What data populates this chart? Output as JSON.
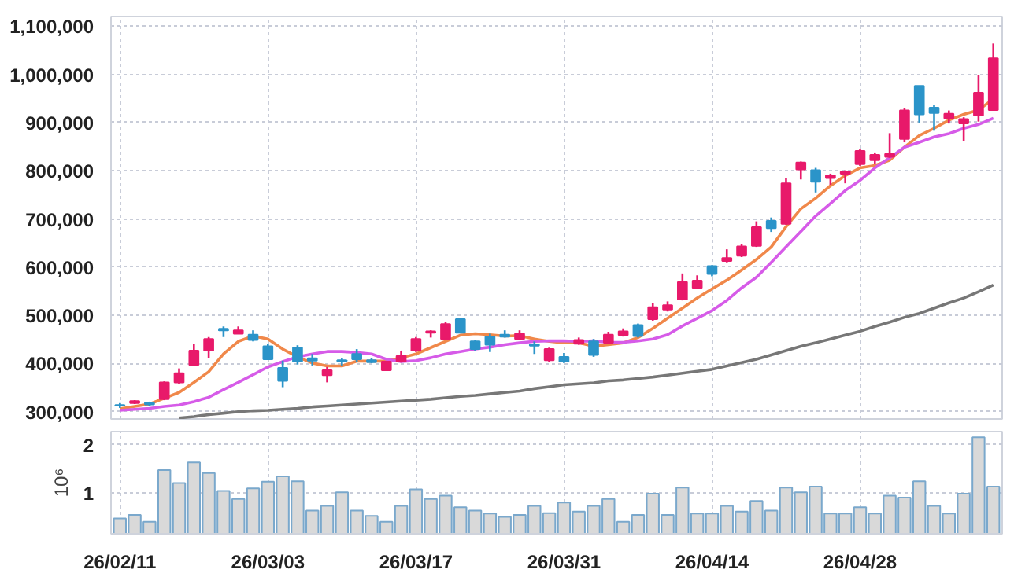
{
  "chart_data": [
    {
      "type": "candlestick",
      "categories": [
        null,
        null,
        null,
        null,
        null,
        null,
        null,
        null,
        null,
        null,
        null,
        null,
        null,
        null,
        null,
        null,
        null,
        null,
        null,
        null,
        null,
        null,
        null,
        null,
        null,
        null,
        null,
        null,
        null,
        null,
        null,
        null,
        null,
        null,
        null,
        null,
        null,
        null,
        null,
        null,
        null,
        null,
        null,
        null,
        null,
        null,
        null,
        null,
        null,
        null,
        null,
        null,
        null,
        null,
        null,
        null,
        null,
        null,
        null,
        null
      ],
      "ohlc": [
        [
          314000,
          318000,
          308000,
          313000
        ],
        [
          318000,
          324000,
          316000,
          322000
        ],
        [
          319000,
          321000,
          311000,
          315000
        ],
        [
          326000,
          363000,
          324000,
          361000
        ],
        [
          361000,
          390000,
          358000,
          380000
        ],
        [
          397000,
          441000,
          395000,
          427000
        ],
        [
          427000,
          455000,
          412000,
          451000
        ],
        [
          472000,
          477000,
          455000,
          469000
        ],
        [
          462000,
          477000,
          462000,
          469000
        ],
        [
          460000,
          469000,
          446000,
          449000
        ],
        [
          436000,
          441000,
          409000,
          409000
        ],
        [
          391000,
          406000,
          351000,
          364000
        ],
        [
          433000,
          438000,
          398000,
          404000
        ],
        [
          411000,
          420000,
          396000,
          406000
        ],
        [
          376000,
          393000,
          361000,
          386000
        ],
        [
          407000,
          412000,
          396000,
          404000
        ],
        [
          420000,
          430000,
          404000,
          409000
        ],
        [
          407000,
          412000,
          401000,
          403000
        ],
        [
          386000,
          405000,
          385000,
          404000
        ],
        [
          404000,
          427000,
          402000,
          416000
        ],
        [
          427000,
          455000,
          424000,
          451000
        ],
        [
          464000,
          469000,
          454000,
          467000
        ],
        [
          451000,
          487000,
          449000,
          482000
        ],
        [
          492000,
          494000,
          464000,
          464000
        ],
        [
          446000,
          449000,
          427000,
          430000
        ],
        [
          456000,
          462000,
          424000,
          439000
        ],
        [
          460000,
          469000,
          454000,
          456000
        ],
        [
          451000,
          469000,
          449000,
          462000
        ],
        [
          440000,
          446000,
          420000,
          437000
        ],
        [
          407000,
          433000,
          404000,
          430000
        ],
        [
          414000,
          422000,
          401000,
          404000
        ],
        [
          441000,
          454000,
          439000,
          449000
        ],
        [
          446000,
          451000,
          414000,
          418000
        ],
        [
          443000,
          466000,
          441000,
          460000
        ],
        [
          459000,
          473000,
          456000,
          467000
        ],
        [
          480000,
          483000,
          454000,
          457000
        ],
        [
          492000,
          525000,
          489000,
          517000
        ],
        [
          512000,
          529000,
          508000,
          521000
        ],
        [
          533000,
          587000,
          531000,
          569000
        ],
        [
          557000,
          583000,
          557000,
          572000
        ],
        [
          602000,
          604000,
          581000,
          586000
        ],
        [
          613000,
          637000,
          610000,
          619000
        ],
        [
          624000,
          648000,
          621000,
          643000
        ],
        [
          644000,
          695000,
          642000,
          683000
        ],
        [
          696000,
          703000,
          673000,
          681000
        ],
        [
          690000,
          785000,
          688000,
          774000
        ],
        [
          803000,
          819000,
          782000,
          817000
        ],
        [
          801000,
          806000,
          755000,
          777000
        ],
        [
          785000,
          794000,
          771000,
          790000
        ],
        [
          794000,
          801000,
          774000,
          798000
        ],
        [
          814000,
          845000,
          810000,
          841000
        ],
        [
          822000,
          838000,
          814000,
          833000
        ],
        [
          829000,
          878000,
          827000,
          835000
        ],
        [
          866000,
          930000,
          859000,
          925000
        ],
        [
          976000,
          976000,
          900000,
          917000
        ],
        [
          931000,
          936000,
          883000,
          920000
        ],
        [
          909000,
          925000,
          898000,
          918000
        ],
        [
          898000,
          911000,
          861000,
          907000
        ],
        [
          915000,
          999000,
          902000,
          962000
        ],
        [
          926000,
          1064000,
          925000,
          1033000
        ]
      ],
      "colors": [
        "#2b94c9",
        "#e8196a",
        "#2b94c9",
        "#e8196a",
        "#e8196a",
        "#e8196a",
        "#e8196a",
        "#2b94c9",
        "#e8196a",
        "#2b94c9",
        "#2b94c9",
        "#2b94c9",
        "#2b94c9",
        "#2b94c9",
        "#e8196a",
        "#2b94c9",
        "#2b94c9",
        "#2b94c9",
        "#e8196a",
        "#e8196a",
        "#e8196a",
        "#e8196a",
        "#e8196a",
        "#2b94c9",
        "#2b94c9",
        "#2b94c9",
        "#2b94c9",
        "#e8196a",
        "#2b94c9",
        "#e8196a",
        "#2b94c9",
        "#e8196a",
        "#2b94c9",
        "#e8196a",
        "#e8196a",
        "#2b94c9",
        "#e8196a",
        "#e8196a",
        "#e8196a",
        "#e8196a",
        "#2b94c9",
        "#e8196a",
        "#e8196a",
        "#e8196a",
        "#2b94c9",
        "#e8196a",
        "#e8196a",
        "#2b94c9",
        "#e8196a",
        "#e8196a",
        "#e8196a",
        "#e8196a",
        "#e8196a",
        "#e8196a",
        "#2b94c9",
        "#2b94c9",
        "#e8196a",
        "#e8196a",
        "#e8196a",
        "#e8196a"
      ],
      "series": [
        {
          "type": "line",
          "color": "#f0884a",
          "values": [
            306000,
            311000,
            316000,
            328000,
            340000,
            361000,
            383000,
            420000,
            446000,
            457000,
            451000,
            430000,
            414000,
            401000,
            395000,
            395000,
            405000,
            405000,
            405000,
            412000,
            420000,
            433000,
            446000,
            459000,
            462000,
            460000,
            457000,
            458000,
            451000,
            446000,
            443000,
            443000,
            436000,
            439000,
            443000,
            454000,
            473000,
            494000,
            515000,
            536000,
            555000,
            573000,
            594000,
            616000,
            642000,
            684000,
            721000,
            743000,
            769000,
            790000,
            806000,
            811000,
            822000,
            849000,
            873000,
            888000,
            905000,
            917000,
            926000,
            949000
          ]
        },
        {
          "type": "line",
          "color": "#d65be8",
          "values": [
            303000,
            305000,
            307000,
            311000,
            314000,
            321000,
            330000,
            346000,
            361000,
            377000,
            393000,
            404000,
            414000,
            420000,
            425000,
            425000,
            423000,
            420000,
            409000,
            404000,
            406000,
            412000,
            420000,
            425000,
            430000,
            434000,
            439000,
            443000,
            446000,
            447000,
            447000,
            446000,
            447000,
            444000,
            444000,
            447000,
            451000,
            460000,
            478000,
            494000,
            510000,
            531000,
            557000,
            579000,
            610000,
            642000,
            674000,
            706000,
            732000,
            759000,
            780000,
            806000,
            827000,
            849000,
            859000,
            870000,
            877000,
            888000,
            896000,
            909000
          ]
        },
        {
          "type": "line",
          "color": "#777777",
          "values": [
            null,
            null,
            null,
            null,
            287000,
            290000,
            294000,
            297000,
            300000,
            302000,
            303000,
            305000,
            307000,
            310000,
            312000,
            314000,
            316000,
            318000,
            320000,
            322000,
            324000,
            326000,
            329000,
            332000,
            334000,
            337000,
            340000,
            343000,
            348000,
            352000,
            356000,
            358000,
            360000,
            364000,
            366000,
            369000,
            372000,
            376000,
            380000,
            384000,
            388000,
            395000,
            402000,
            409000,
            418000,
            427000,
            436000,
            443000,
            451000,
            459000,
            467000,
            477000,
            486000,
            496000,
            504000,
            515000,
            526000,
            536000,
            549000,
            563000
          ]
        }
      ],
      "ylim": [
        285000,
        1120000
      ],
      "yticks": [
        {
          "value": 300000,
          "label": "300,000"
        },
        {
          "value": 400000,
          "label": "400,000"
        },
        {
          "value": 500000,
          "label": "500,000"
        },
        {
          "value": 600000,
          "label": "600,000"
        },
        {
          "value": 700000,
          "label": "700,000"
        },
        {
          "value": 800000,
          "label": "800,000"
        },
        {
          "value": 900000,
          "label": "900,000"
        },
        {
          "value": 1000000,
          "label": "1,000,000"
        },
        {
          "value": 1100000,
          "label": "1,100,000"
        }
      ],
      "grid": true,
      "tick_labels": "y"
    },
    {
      "type": "bar",
      "categories": [
        "26/02/11",
        null,
        null,
        null,
        null,
        null,
        null,
        null,
        null,
        null,
        "26/03/03",
        null,
        null,
        null,
        null,
        null,
        null,
        null,
        null,
        null,
        "26/03/17",
        null,
        null,
        null,
        null,
        null,
        null,
        null,
        null,
        null,
        "26/03/31",
        null,
        null,
        null,
        null,
        null,
        null,
        null,
        null,
        null,
        "26/04/14",
        null,
        null,
        null,
        null,
        null,
        null,
        null,
        null,
        null,
        "26/04/28",
        null,
        null,
        null,
        null,
        null,
        null,
        null,
        null,
        null
      ],
      "values": [
        0.47,
        0.54,
        0.4,
        1.47,
        1.2,
        1.63,
        1.41,
        1.04,
        0.87,
        1.09,
        1.23,
        1.34,
        1.24,
        0.63,
        0.73,
        1.01,
        0.63,
        0.52,
        0.4,
        0.73,
        1.07,
        0.87,
        0.94,
        0.7,
        0.63,
        0.57,
        0.5,
        0.54,
        0.73,
        0.58,
        0.8,
        0.61,
        0.73,
        0.87,
        0.4,
        0.54,
        0.98,
        0.54,
        1.11,
        0.57,
        0.57,
        0.73,
        0.61,
        0.83,
        0.63,
        1.11,
        1.01,
        1.13,
        0.57,
        0.57,
        0.7,
        0.57,
        0.94,
        0.9,
        1.24,
        0.73,
        0.57,
        0.98,
        2.15,
        1.13
      ],
      "color": "#d9d9d9",
      "ylabel": "10⁶",
      "ylim": [
        0.15,
        2.27
      ],
      "yticks": [
        1,
        2
      ],
      "grid": true
    }
  ]
}
